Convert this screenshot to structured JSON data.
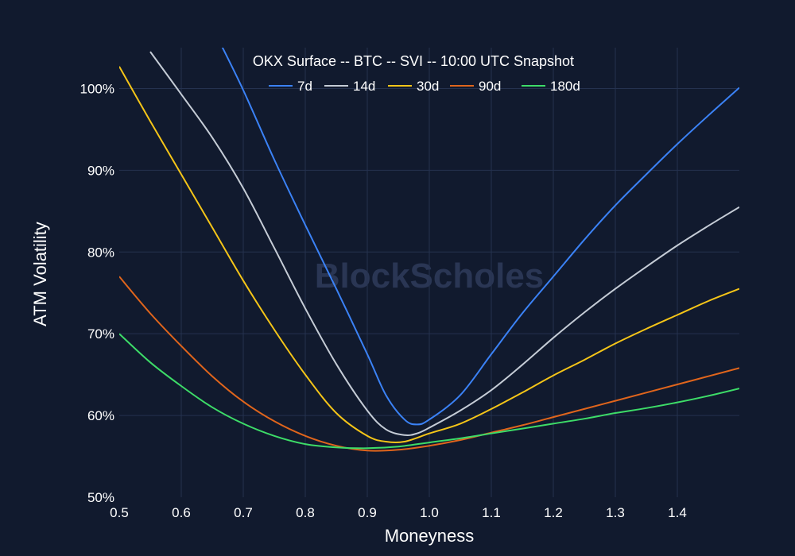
{
  "watermark": "BlockScholes",
  "chart_data": {
    "type": "line",
    "title": "OKX Surface -- BTC -- SVI -- 10:00 UTC Snapshot",
    "xlabel": "Moneyness",
    "ylabel": "ATM Volatility",
    "xlim": [
      0.5,
      1.5
    ],
    "ylim": [
      50,
      105
    ],
    "x_ticks": [
      0.5,
      0.6,
      0.7,
      0.8,
      0.9,
      1.0,
      1.1,
      1.2,
      1.3,
      1.4
    ],
    "x_tick_labels": [
      "0.5",
      "0.6",
      "0.7",
      "0.8",
      "0.9",
      "1.0",
      "1.1",
      "1.2",
      "1.3",
      "1.4"
    ],
    "y_ticks": [
      50,
      60,
      70,
      80,
      90,
      100
    ],
    "y_tick_labels": [
      "50%",
      "60%",
      "70%",
      "80%",
      "90%",
      "100%"
    ],
    "grid": true,
    "legend_position": "top-center",
    "series": [
      {
        "name": "7d",
        "color": "#3b82f6",
        "x": [
          0.66,
          0.7,
          0.75,
          0.8,
          0.85,
          0.9,
          0.93,
          0.96,
          0.98,
          1.0,
          1.05,
          1.1,
          1.15,
          1.2,
          1.25,
          1.3,
          1.35,
          1.4,
          1.45,
          1.5
        ],
        "y": [
          106,
          99.8,
          91.3,
          83.3,
          75.5,
          67.5,
          62.5,
          59.5,
          58.9,
          59.5,
          62.5,
          67.5,
          72.5,
          77.0,
          81.5,
          85.7,
          89.5,
          93.2,
          96.7,
          100.1
        ]
      },
      {
        "name": "14d",
        "color": "#c5ccd6",
        "x": [
          0.55,
          0.6,
          0.65,
          0.7,
          0.75,
          0.8,
          0.85,
          0.9,
          0.93,
          0.96,
          0.98,
          1.0,
          1.05,
          1.1,
          1.15,
          1.2,
          1.25,
          1.3,
          1.35,
          1.4,
          1.45,
          1.5
        ],
        "y": [
          104.5,
          99.3,
          94.0,
          87.8,
          80.5,
          73.1,
          66.3,
          60.6,
          58.3,
          57.6,
          57.8,
          58.5,
          60.6,
          63.1,
          66.2,
          69.5,
          72.6,
          75.5,
          78.2,
          80.8,
          83.2,
          85.5
        ]
      },
      {
        "name": "30d",
        "color": "#f5c518",
        "x": [
          0.5,
          0.55,
          0.6,
          0.65,
          0.7,
          0.75,
          0.8,
          0.85,
          0.9,
          0.93,
          0.96,
          1.0,
          1.05,
          1.1,
          1.15,
          1.2,
          1.25,
          1.3,
          1.35,
          1.4,
          1.45,
          1.5
        ],
        "y": [
          102.7,
          96.0,
          89.5,
          83.0,
          76.5,
          70.5,
          65.0,
          60.3,
          57.5,
          56.8,
          56.8,
          57.8,
          59.0,
          60.8,
          62.8,
          64.9,
          66.8,
          68.8,
          70.6,
          72.3,
          74.0,
          75.5
        ]
      },
      {
        "name": "90d",
        "color": "#e0651c",
        "x": [
          0.5,
          0.55,
          0.6,
          0.65,
          0.7,
          0.75,
          0.8,
          0.85,
          0.9,
          0.95,
          1.0,
          1.05,
          1.1,
          1.15,
          1.2,
          1.25,
          1.3,
          1.35,
          1.4,
          1.45,
          1.5
        ],
        "y": [
          77.0,
          72.5,
          68.5,
          64.8,
          61.7,
          59.3,
          57.5,
          56.3,
          55.7,
          55.8,
          56.3,
          57.0,
          57.9,
          58.8,
          59.8,
          60.8,
          61.8,
          62.8,
          63.8,
          64.8,
          65.8
        ]
      },
      {
        "name": "180d",
        "color": "#3ddc68",
        "x": [
          0.5,
          0.55,
          0.6,
          0.65,
          0.7,
          0.75,
          0.8,
          0.85,
          0.9,
          0.95,
          1.0,
          1.05,
          1.1,
          1.15,
          1.2,
          1.25,
          1.3,
          1.35,
          1.4,
          1.45,
          1.5
        ],
        "y": [
          70.0,
          66.5,
          63.6,
          61.0,
          59.0,
          57.5,
          56.5,
          56.1,
          56.0,
          56.2,
          56.7,
          57.2,
          57.8,
          58.4,
          59.0,
          59.6,
          60.3,
          60.9,
          61.6,
          62.4,
          63.3
        ]
      }
    ]
  }
}
